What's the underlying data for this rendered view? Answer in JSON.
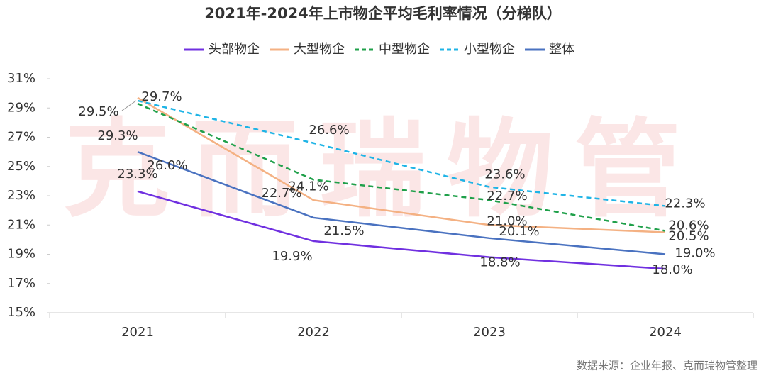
{
  "chart_data": {
    "type": "line",
    "title": "2021年-2024年上市物企平均毛利率情况（分梯队）",
    "watermark": "克而瑞物管",
    "source": "数据来源：企业年报、克而瑞物管整理",
    "categories": [
      "2021",
      "2022",
      "2023",
      "2024"
    ],
    "ylim": [
      15,
      31
    ],
    "yticks": [
      {
        "value": 15,
        "label": "15%"
      },
      {
        "value": 17,
        "label": "17%"
      },
      {
        "value": 19,
        "label": "19%"
      },
      {
        "value": 21,
        "label": "21%"
      },
      {
        "value": 23,
        "label": "23%"
      },
      {
        "value": 25,
        "label": "25%"
      },
      {
        "value": 27,
        "label": "27%"
      },
      {
        "value": 29,
        "label": "29%"
      },
      {
        "value": 31,
        "label": "31%"
      }
    ],
    "legend": "top",
    "series": [
      {
        "name": "头部物企",
        "color": "#7030e0",
        "dashed": false,
        "values": [
          23.3,
          19.9,
          18.8,
          18.0
        ],
        "value_labels": [
          "23.3%",
          "19.9%",
          "18.8%",
          "18.0%"
        ]
      },
      {
        "name": "大型物企",
        "color": "#f4b183",
        "dashed": false,
        "values": [
          29.7,
          22.7,
          21.0,
          20.5
        ],
        "value_labels": [
          "29.7%",
          "22.7%",
          "21.0%",
          "20.5%"
        ]
      },
      {
        "name": "中型物企",
        "color": "#1fa04a",
        "dashed": true,
        "values": [
          29.3,
          24.1,
          22.7,
          20.6
        ],
        "value_labels": [
          "29.3%",
          "24.1%",
          "22.7%",
          "20.6%"
        ]
      },
      {
        "name": "小型物企",
        "color": "#1fb4e6",
        "dashed": true,
        "values": [
          29.5,
          26.6,
          23.6,
          22.3
        ],
        "value_labels": [
          "29.5%",
          "26.6%",
          "23.6%",
          "22.3%"
        ]
      },
      {
        "name": "整体",
        "color": "#4a72c0",
        "dashed": false,
        "values": [
          26.0,
          21.5,
          20.1,
          19.0
        ],
        "value_labels": [
          "26.0%",
          "21.5%",
          "20.1%",
          "19.0%"
        ]
      }
    ]
  }
}
